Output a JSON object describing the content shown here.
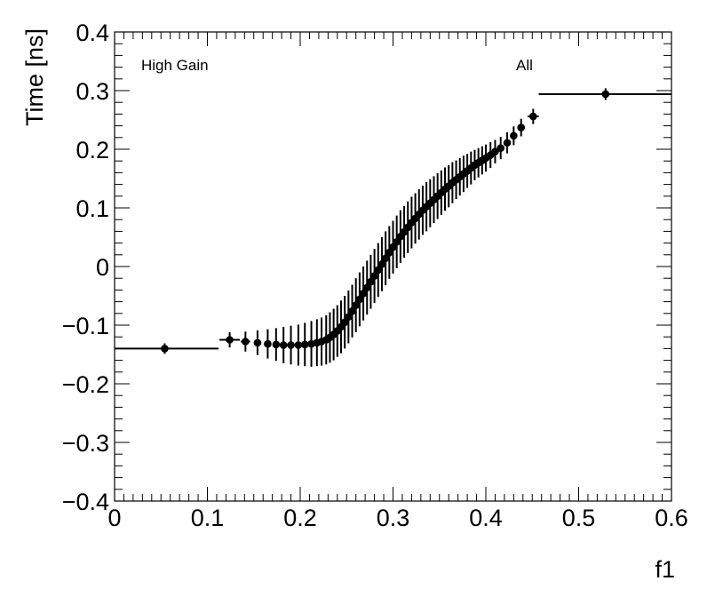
{
  "chart_data": {
    "type": "scatter",
    "xlabel": "f1",
    "ylabel": "Time [ns]",
    "xlim": [
      0,
      0.6
    ],
    "ylim": [
      -0.4,
      0.4
    ],
    "x_ticks": [
      0,
      0.1,
      0.2,
      0.3,
      0.4,
      0.5,
      0.6
    ],
    "x_tick_labels": [
      "0",
      "0.1",
      "0.2",
      "0.3",
      "0.4",
      "0.5",
      "0.6"
    ],
    "y_ticks": [
      -0.4,
      -0.3,
      -0.2,
      -0.1,
      0,
      0.1,
      0.2,
      0.3,
      0.4
    ],
    "y_tick_labels": [
      "−0.4",
      "−0.3",
      "−0.2",
      "−0.1",
      "0",
      "0.1",
      "0.2",
      "0.3",
      "0.4"
    ],
    "annotations": [
      "High Gain",
      "All"
    ],
    "grid": false,
    "series": [
      {
        "marker": "circle",
        "color": "#000000",
        "x": [
          0.054,
          0.124,
          0.141,
          0.154,
          0.165,
          0.174,
          0.182,
          0.19,
          0.198,
          0.205,
          0.212,
          0.218,
          0.223,
          0.228,
          0.232,
          0.236,
          0.24,
          0.244,
          0.248,
          0.252,
          0.256,
          0.26,
          0.264,
          0.268,
          0.272,
          0.276,
          0.28,
          0.284,
          0.288,
          0.292,
          0.296,
          0.3,
          0.304,
          0.308,
          0.312,
          0.316,
          0.32,
          0.324,
          0.328,
          0.332,
          0.336,
          0.34,
          0.344,
          0.348,
          0.352,
          0.356,
          0.36,
          0.364,
          0.368,
          0.372,
          0.376,
          0.38,
          0.384,
          0.388,
          0.392,
          0.396,
          0.4,
          0.405,
          0.41,
          0.416,
          0.423,
          0.43,
          0.438,
          0.451,
          0.529
        ],
        "y": [
          -0.14,
          -0.125,
          -0.128,
          -0.13,
          -0.132,
          -0.133,
          -0.134,
          -0.134,
          -0.134,
          -0.133,
          -0.132,
          -0.13,
          -0.128,
          -0.125,
          -0.121,
          -0.116,
          -0.11,
          -0.103,
          -0.095,
          -0.086,
          -0.076,
          -0.066,
          -0.056,
          -0.046,
          -0.036,
          -0.026,
          -0.016,
          -0.006,
          0.004,
          0.014,
          0.024,
          0.033,
          0.042,
          0.051,
          0.059,
          0.067,
          0.075,
          0.082,
          0.089,
          0.096,
          0.102,
          0.108,
          0.114,
          0.12,
          0.126,
          0.132,
          0.137,
          0.143,
          0.148,
          0.153,
          0.158,
          0.163,
          0.168,
          0.173,
          0.177,
          0.181,
          0.185,
          0.19,
          0.196,
          0.202,
          0.211,
          0.223,
          0.237,
          0.256,
          0.294
        ],
        "xerr_low": [
          0.054,
          0.011,
          0.005,
          0.004,
          0.003,
          0.003,
          0.003,
          0.003,
          0.003,
          0.003,
          0.002,
          0.002,
          0.002,
          0.002,
          0.002,
          0.002,
          0.002,
          0.002,
          0.002,
          0.002,
          0.002,
          0.002,
          0.002,
          0.002,
          0.002,
          0.002,
          0.002,
          0.002,
          0.002,
          0.002,
          0.002,
          0.002,
          0.002,
          0.002,
          0.002,
          0.002,
          0.002,
          0.002,
          0.002,
          0.002,
          0.002,
          0.002,
          0.002,
          0.002,
          0.002,
          0.002,
          0.002,
          0.002,
          0.002,
          0.002,
          0.002,
          0.002,
          0.002,
          0.002,
          0.002,
          0.002,
          0.002,
          0.002,
          0.002,
          0.003,
          0.003,
          0.003,
          0.004,
          0.006,
          0.072
        ],
        "xerr_high": [
          0.058,
          0.011,
          0.005,
          0.004,
          0.003,
          0.003,
          0.003,
          0.003,
          0.003,
          0.003,
          0.002,
          0.002,
          0.002,
          0.002,
          0.002,
          0.002,
          0.002,
          0.002,
          0.002,
          0.002,
          0.002,
          0.002,
          0.002,
          0.002,
          0.002,
          0.002,
          0.002,
          0.002,
          0.002,
          0.002,
          0.002,
          0.002,
          0.002,
          0.002,
          0.002,
          0.002,
          0.002,
          0.002,
          0.002,
          0.002,
          0.002,
          0.002,
          0.002,
          0.002,
          0.002,
          0.002,
          0.002,
          0.002,
          0.002,
          0.002,
          0.002,
          0.002,
          0.002,
          0.002,
          0.002,
          0.002,
          0.002,
          0.002,
          0.002,
          0.003,
          0.003,
          0.003,
          0.004,
          0.006,
          0.071
        ],
        "yerr": [
          0.009,
          0.013,
          0.017,
          0.021,
          0.025,
          0.028,
          0.031,
          0.033,
          0.035,
          0.037,
          0.039,
          0.04,
          0.041,
          0.042,
          0.043,
          0.044,
          0.044,
          0.045,
          0.045,
          0.045,
          0.045,
          0.046,
          0.046,
          0.046,
          0.046,
          0.046,
          0.046,
          0.046,
          0.046,
          0.046,
          0.045,
          0.045,
          0.045,
          0.045,
          0.044,
          0.044,
          0.044,
          0.043,
          0.043,
          0.042,
          0.042,
          0.041,
          0.04,
          0.039,
          0.038,
          0.037,
          0.036,
          0.035,
          0.033,
          0.032,
          0.031,
          0.029,
          0.028,
          0.026,
          0.025,
          0.024,
          0.023,
          0.022,
          0.02,
          0.019,
          0.018,
          0.016,
          0.015,
          0.013,
          0.01
        ]
      }
    ]
  }
}
